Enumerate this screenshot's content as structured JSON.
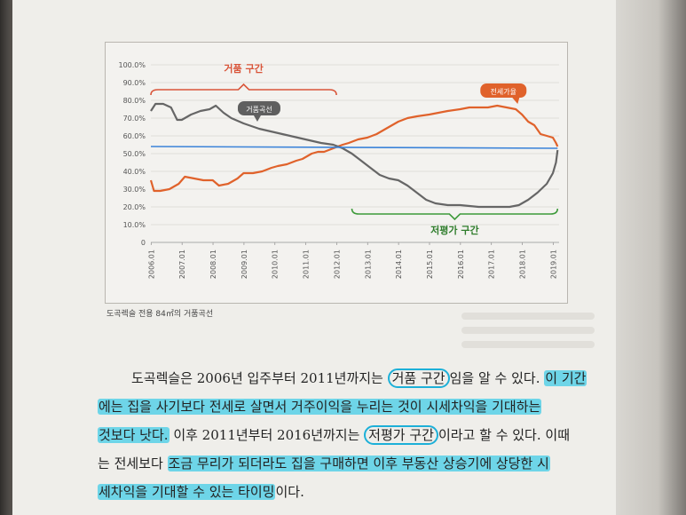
{
  "chart_data": {
    "type": "line",
    "yticks": [
      "0",
      "10.0%",
      "20.0%",
      "30.0%",
      "40.0%",
      "50.0%",
      "60.0%",
      "70.0%",
      "80.0%",
      "90.0%",
      "100.0%"
    ],
    "xticks": [
      "2006.01",
      "2007.01",
      "2008.01",
      "2009.01",
      "2010.01",
      "2011.01",
      "2012.01",
      "2013.01",
      "2014.01",
      "2015.01",
      "2016.01",
      "2017.01",
      "2018.01",
      "2019.01"
    ],
    "ylim": [
      0,
      100
    ],
    "xlim": [
      2006.0,
      2019.2
    ],
    "series": [
      {
        "name": "전세가율",
        "color": "#e0622b",
        "points": [
          [
            2006.0,
            35
          ],
          [
            2006.1,
            29
          ],
          [
            2006.3,
            29
          ],
          [
            2006.6,
            30
          ],
          [
            2006.9,
            33
          ],
          [
            2007.1,
            37
          ],
          [
            2007.4,
            36
          ],
          [
            2007.7,
            35
          ],
          [
            2008.0,
            35
          ],
          [
            2008.2,
            32
          ],
          [
            2008.5,
            33
          ],
          [
            2008.8,
            36
          ],
          [
            2009.0,
            39
          ],
          [
            2009.3,
            39
          ],
          [
            2009.6,
            40
          ],
          [
            2009.9,
            42
          ],
          [
            2010.1,
            43
          ],
          [
            2010.4,
            44
          ],
          [
            2010.7,
            46
          ],
          [
            2010.9,
            47
          ],
          [
            2011.2,
            50
          ],
          [
            2011.4,
            51
          ],
          [
            2011.6,
            51
          ],
          [
            2011.9,
            53
          ],
          [
            2012.2,
            55
          ],
          [
            2012.4,
            56
          ],
          [
            2012.7,
            58
          ],
          [
            2013.0,
            59
          ],
          [
            2013.3,
            61
          ],
          [
            2013.6,
            64
          ],
          [
            2014.0,
            68
          ],
          [
            2014.3,
            70
          ],
          [
            2014.6,
            71
          ],
          [
            2015.0,
            72
          ],
          [
            2015.3,
            73
          ],
          [
            2015.6,
            74
          ],
          [
            2016.0,
            75
          ],
          [
            2016.3,
            76
          ],
          [
            2016.6,
            76
          ],
          [
            2016.9,
            76
          ],
          [
            2017.2,
            77
          ],
          [
            2017.5,
            76
          ],
          [
            2017.8,
            75
          ],
          [
            2018.0,
            72
          ],
          [
            2018.2,
            68
          ],
          [
            2018.4,
            66
          ],
          [
            2018.6,
            61
          ],
          [
            2018.8,
            60
          ],
          [
            2019.0,
            59
          ],
          [
            2019.1,
            56
          ],
          [
            2019.15,
            54
          ]
        ]
      },
      {
        "name": "거품곡선",
        "color": "#666666",
        "points": [
          [
            2006.0,
            74
          ],
          [
            2006.15,
            78
          ],
          [
            2006.4,
            78
          ],
          [
            2006.65,
            76
          ],
          [
            2006.85,
            69
          ],
          [
            2007.0,
            69
          ],
          [
            2007.3,
            72
          ],
          [
            2007.6,
            74
          ],
          [
            2007.9,
            75
          ],
          [
            2008.1,
            77
          ],
          [
            2008.35,
            73
          ],
          [
            2008.6,
            70
          ],
          [
            2009.0,
            67
          ],
          [
            2009.5,
            64
          ],
          [
            2010.0,
            62
          ],
          [
            2010.5,
            60
          ],
          [
            2011.0,
            58
          ],
          [
            2011.5,
            56
          ],
          [
            2011.9,
            55
          ],
          [
            2012.2,
            53
          ],
          [
            2012.5,
            50
          ],
          [
            2012.8,
            46
          ],
          [
            2013.1,
            42
          ],
          [
            2013.4,
            38
          ],
          [
            2013.7,
            36
          ],
          [
            2014.0,
            35
          ],
          [
            2014.3,
            32
          ],
          [
            2014.6,
            28
          ],
          [
            2014.9,
            24
          ],
          [
            2015.2,
            22
          ],
          [
            2015.6,
            21
          ],
          [
            2016.0,
            21
          ],
          [
            2016.6,
            20
          ],
          [
            2017.2,
            20
          ],
          [
            2017.6,
            20
          ],
          [
            2017.9,
            21
          ],
          [
            2018.2,
            24
          ],
          [
            2018.5,
            28
          ],
          [
            2018.8,
            33
          ],
          [
            2019.0,
            39
          ],
          [
            2019.1,
            45
          ],
          [
            2019.15,
            52
          ]
        ]
      },
      {
        "name": "",
        "color": "#3b83d9",
        "points": [
          [
            2006.0,
            54
          ],
          [
            2019.15,
            53
          ]
        ]
      }
    ],
    "annotations": {
      "bubble_label": "거품 구간",
      "undervalued_label": "저평가 구간",
      "jeonse_rate_label": "전세가율",
      "bubble_curve_label": "거품곡선"
    }
  },
  "caption": "도곡렉슬 전용 84㎡의 거품곡선",
  "paragraph": {
    "l1_a": "도곡렉슬은 2006년 입주부터 2011년까지는 ",
    "l1_circ": "거품 구간",
    "l1_b": "임을 알 수 있다. ",
    "l1_hl": "이 기간",
    "l2_hl": "에는 집을 사기보다 전세로 살면서 거주이익을 누리는 것이 시세차익을 기대하는",
    "l3_hl": "것보다 낫다.",
    "l3_a": " 이후 2011년부터 2016년까지는 ",
    "l3_circ": "저평가 구간",
    "l3_b": "이라고 할 수 있다. 이때",
    "l4_a": "는 전세보다 ",
    "l4_hl": "조금 무리가 되더라도 집을 구매하면 이후 부동산 상승기에 상당한 시",
    "l5_hl": "세차익을 기대할 수 있는 타이밍",
    "l5_a": "이다."
  }
}
